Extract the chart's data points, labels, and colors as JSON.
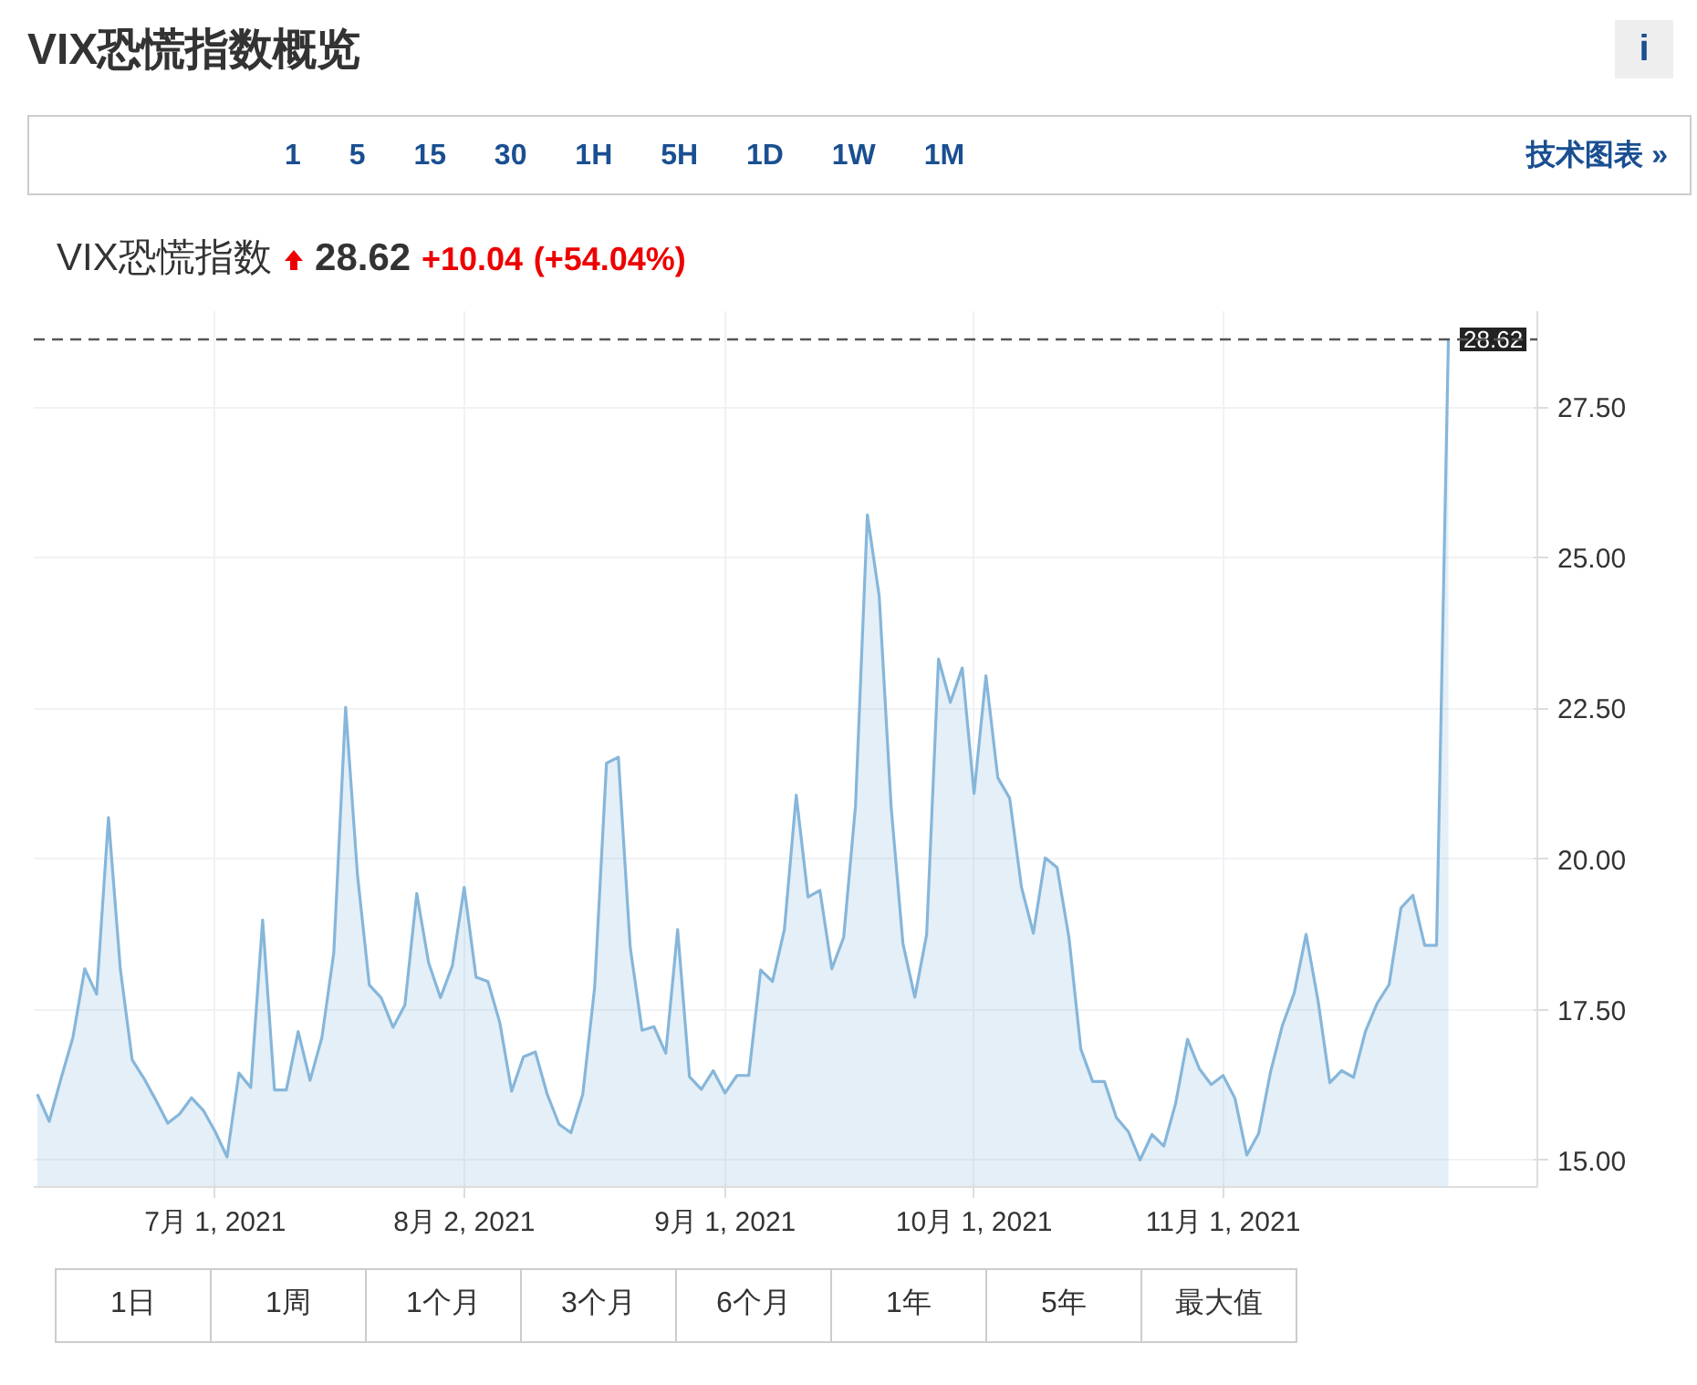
{
  "chart_data": {
    "type": "area",
    "title": "VIX恐慌指数概览",
    "subtitle": "VIX恐慌指数",
    "annotations": [
      "i",
      "1 5 15 30 1H 5H 1D 1W 1M",
      "技术图表 »",
      "28.62",
      "+10.04",
      "(+54.04%)",
      "1日",
      "1周",
      "1个月",
      "3个月",
      "6个月",
      "1年",
      "5年",
      "最大值"
    ],
    "categories": [
      null,
      null,
      null,
      null,
      null,
      null,
      null,
      null,
      null,
      null,
      null,
      null,
      null,
      null,
      null,
      "7月 1, 2021",
      null,
      null,
      null,
      null,
      null,
      null,
      null,
      null,
      null,
      null,
      null,
      null,
      null,
      null,
      null,
      null,
      null,
      null,
      null,
      null,
      "8月 2, 2021",
      null,
      null,
      null,
      null,
      null,
      null,
      null,
      null,
      null,
      null,
      null,
      null,
      null,
      null,
      null,
      null,
      null,
      null,
      null,
      null,
      null,
      "9月 1, 2021",
      null,
      null,
      null,
      null,
      null,
      null,
      null,
      null,
      null,
      null,
      null,
      null,
      null,
      null,
      null,
      null,
      null,
      null,
      null,
      null,
      "10月 1, 2021",
      null,
      null,
      null,
      null,
      null,
      null,
      null,
      null,
      null,
      null,
      null,
      null,
      null,
      null,
      null,
      null,
      null,
      null,
      null,
      null,
      "11月 1, 2021",
      null,
      null,
      null,
      null,
      null,
      null,
      null,
      null,
      null,
      null,
      null,
      null,
      null,
      null,
      null,
      null,
      null,
      null,
      null
    ],
    "series": [
      {
        "color": "#86b6da",
        "values": [
          16.1,
          15.65,
          16.36,
          17.04,
          18.18,
          17.76,
          20.69,
          18.18,
          16.67,
          16.36,
          16.0,
          15.62,
          15.77,
          16.04,
          15.83,
          15.48,
          15.06,
          16.45,
          16.21,
          18.99,
          16.17,
          16.17,
          17.14,
          16.33,
          17.04,
          18.44,
          22.52,
          19.74,
          17.91,
          17.7,
          17.21,
          17.58,
          19.43,
          18.28,
          17.7,
          18.23,
          19.53,
          18.04,
          17.97,
          17.29,
          16.15,
          16.72,
          16.8,
          16.1,
          15.6,
          15.46,
          16.1,
          17.87,
          21.59,
          21.69,
          18.54,
          17.16,
          17.22,
          16.78,
          18.83,
          16.39,
          16.18,
          16.49,
          16.12,
          16.41,
          16.41,
          18.16,
          17.97,
          18.83,
          21.06,
          19.37,
          19.48,
          18.18,
          18.7,
          20.88,
          25.71,
          24.36,
          20.88,
          18.6,
          17.71,
          18.75,
          23.32,
          22.6,
          23.17,
          21.09,
          23.04,
          21.35,
          21.01,
          19.53,
          18.77,
          20.02,
          19.86,
          18.7,
          16.85,
          16.31,
          16.31,
          15.71,
          15.48,
          15.01,
          15.43,
          15.24,
          15.95,
          17.01,
          16.52,
          16.26,
          16.41,
          16.03,
          15.09,
          15.45,
          16.47,
          17.24,
          17.78,
          18.75,
          17.66,
          16.29,
          16.49,
          16.38,
          17.14,
          17.61,
          17.92,
          19.19,
          19.4,
          18.57,
          18.57,
          28.62
        ]
      }
    ],
    "ylim": [
      14.56,
      29.09
    ],
    "yticks": [
      {
        "value": 15,
        "label": "15.00"
      },
      {
        "value": 17.5,
        "label": "17.50"
      },
      {
        "value": 20,
        "label": "20.00"
      },
      {
        "value": 22.5,
        "label": "22.50"
      },
      {
        "value": 25,
        "label": "25.00"
      },
      {
        "value": 27.5,
        "label": "27.50"
      }
    ],
    "ref_lines": [
      {
        "axis": "y",
        "value": 28.62,
        "label": "28.62",
        "color": "#555555",
        "line_style": "dashed"
      }
    ],
    "grid": true
  }
}
